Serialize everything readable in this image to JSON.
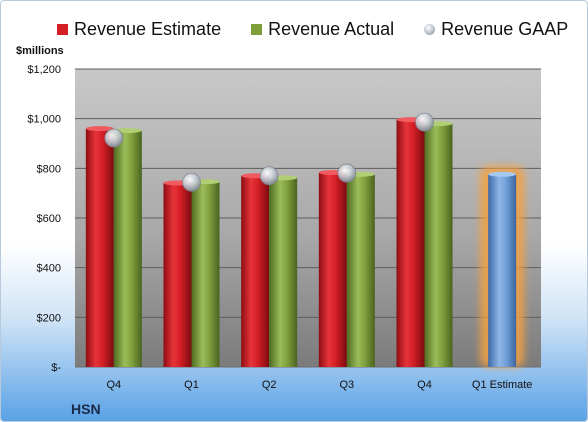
{
  "company": "HSN",
  "colors": {
    "estimate": "#d41f26",
    "actual": "#7f9f3c",
    "gaap": "#b9c0ca",
    "q1_estimate": "#6f9fd8",
    "highlight": "#f5a141"
  },
  "chart_data": {
    "type": "bar",
    "unit_label": "$millions",
    "categories": [
      "Q4",
      "Q1",
      "Q2",
      "Q3",
      "Q4",
      "Q1 Estimate"
    ],
    "series": [
      {
        "name": "Revenue Estimate",
        "kind": "bar",
        "values": [
          960,
          741,
          770,
          783,
          996,
          null
        ]
      },
      {
        "name": "Revenue Actual",
        "kind": "bar",
        "values": [
          952,
          746,
          762,
          776,
          980,
          776
        ]
      },
      {
        "name": "Revenue GAAP",
        "kind": "marker",
        "values": [
          922,
          744,
          770,
          781,
          986,
          null
        ]
      }
    ],
    "yticks": [
      "$-",
      "$200",
      "$400",
      "$600",
      "$800",
      "$1,000",
      "$1,200"
    ],
    "ytick_values": [
      0,
      200,
      400,
      600,
      800,
      1000,
      1200
    ],
    "ylim": [
      0,
      1200
    ],
    "grid": true,
    "legend_position": "top"
  }
}
